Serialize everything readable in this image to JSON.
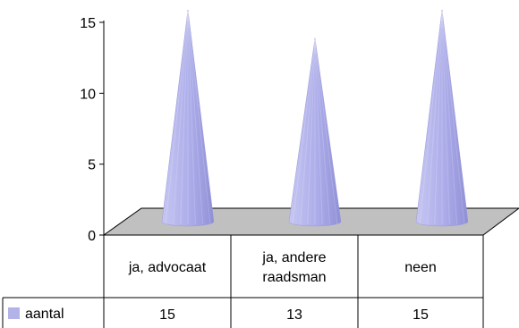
{
  "chart_data": {
    "type": "bar",
    "style": "3d-cone",
    "categories": [
      "ja, advocaat",
      "ja, andere raadsman",
      "neen"
    ],
    "category_lines": [
      [
        "ja, advocaat"
      ],
      [
        "ja, andere",
        "raadsman"
      ],
      [
        "neen"
      ]
    ],
    "series": [
      {
        "name": "aantal",
        "values": [
          15,
          13,
          15
        ],
        "color": "#b3b3e8"
      }
    ],
    "y_ticks": [
      0,
      5,
      10,
      15
    ],
    "ylim": [
      0,
      15
    ],
    "grid": false,
    "data_table": true,
    "legend": "in data table, left of values row",
    "floor_color": "#c0c0c0"
  }
}
